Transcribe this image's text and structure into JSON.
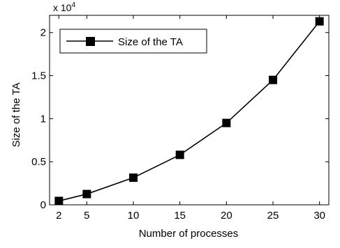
{
  "chart_data": {
    "type": "line",
    "title": "",
    "xlabel": "Number of processes",
    "ylabel": "Size of the TA",
    "y_scale_label": "x 10",
    "y_scale_exponent": "4",
    "x": [
      2,
      5,
      10,
      15,
      20,
      25,
      30
    ],
    "x_ticks": [
      "2",
      "5",
      "10",
      "15",
      "20",
      "25",
      "30"
    ],
    "y_ticks": [
      "0",
      "0.5",
      "1",
      "1.5",
      "2"
    ],
    "xlim": [
      1,
      31
    ],
    "ylim": [
      0,
      22000
    ],
    "grid": false,
    "legend_position": "top-left",
    "series": [
      {
        "name": "Size of the TA",
        "marker": "square",
        "color": "#000000",
        "values": [
          450,
          1250,
          3150,
          5800,
          9500,
          14500,
          21300
        ]
      }
    ]
  }
}
